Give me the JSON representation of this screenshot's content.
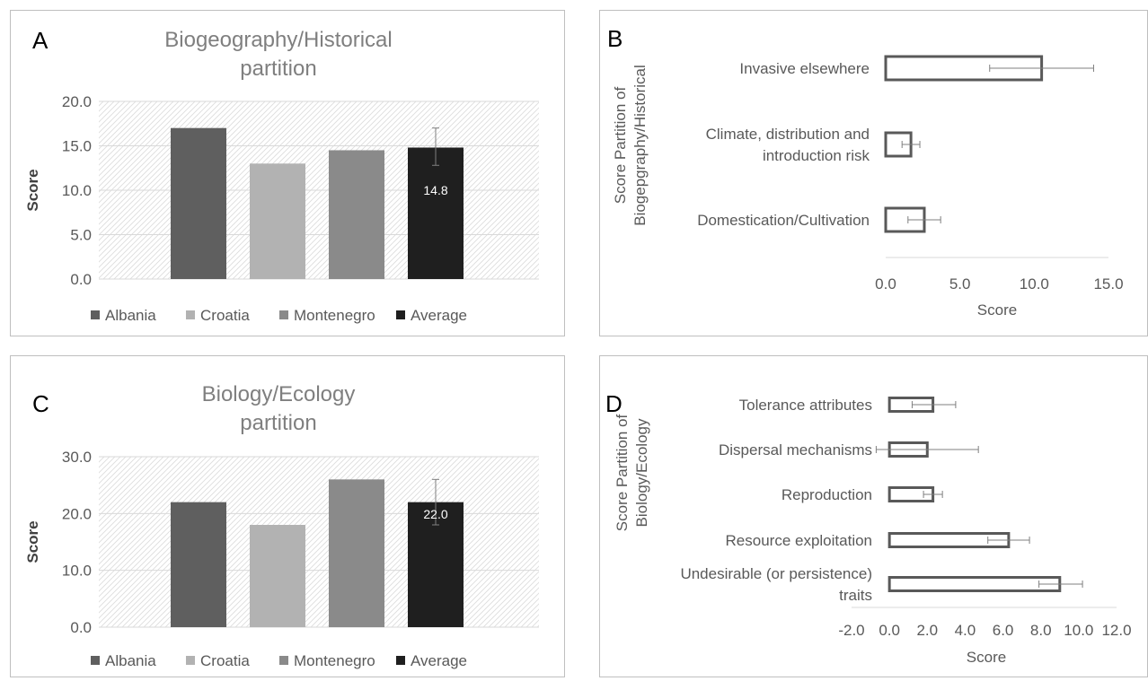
{
  "chart_data": [
    {
      "id": "A",
      "panel_letter": "A",
      "type": "bar",
      "title": [
        "Biogeography/Historical",
        "partition"
      ],
      "ylabel": "Score",
      "ylim": [
        0,
        20
      ],
      "yticks": [
        "0.0",
        "5.0",
        "10.0",
        "15.0",
        "20.0"
      ],
      "categories": [
        "Albania",
        "Croatia",
        "Montenegro",
        "Average"
      ],
      "values": [
        17,
        13,
        14.5,
        14.8
      ],
      "colors": [
        "#5f5f5f",
        "#b2b2b2",
        "#8a8a8a",
        "#1f1f1f"
      ],
      "error": {
        "index": 3,
        "low": 12.8,
        "high": 17
      },
      "data_label": {
        "index": 3,
        "text": "14.8"
      },
      "grid": true,
      "legend": "bottom"
    },
    {
      "id": "B",
      "panel_letter": "B",
      "type": "bar",
      "orientation": "horizontal",
      "ylabel": [
        "Score Partition of",
        "Biogepgraphy/Historical"
      ],
      "xlabel": "Score",
      "xlim": [
        0,
        15
      ],
      "xticks": [
        "0.0",
        "5.0",
        "10.0",
        "15.0"
      ],
      "categories": [
        [
          "Invasive elsewhere"
        ],
        [
          "Climate, distribution and",
          "introduction risk"
        ],
        [
          "Domestication/Cultivation"
        ]
      ],
      "values": [
        10.5,
        1.7,
        2.6
      ],
      "errors": [
        [
          7,
          14
        ],
        [
          1.1,
          2.3
        ],
        [
          1.5,
          3.7
        ]
      ],
      "grid": false
    },
    {
      "id": "C",
      "panel_letter": "C",
      "type": "bar",
      "title": [
        "Biology/Ecology",
        "partition"
      ],
      "ylabel": "Score",
      "ylim": [
        0,
        30
      ],
      "yticks": [
        "0.0",
        "10.0",
        "20.0",
        "30.0"
      ],
      "categories": [
        "Albania",
        "Croatia",
        "Montenegro",
        "Average"
      ],
      "values": [
        22,
        18,
        26,
        22
      ],
      "colors": [
        "#5f5f5f",
        "#b2b2b2",
        "#8a8a8a",
        "#1f1f1f"
      ],
      "error": {
        "index": 3,
        "low": 18,
        "high": 26
      },
      "data_label": {
        "index": 3,
        "text": "22.0"
      },
      "grid": true,
      "legend": "bottom"
    },
    {
      "id": "D",
      "panel_letter": "D",
      "type": "bar",
      "orientation": "horizontal",
      "ylabel": [
        "Score Partition of",
        "Biology/Ecology"
      ],
      "xlabel": "Score",
      "xlim": [
        -2,
        12
      ],
      "xticks": [
        "-2.0",
        "0.0",
        "2.0",
        "4.0",
        "6.0",
        "8.0",
        "10.0",
        "12.0"
      ],
      "categories": [
        [
          "Tolerance attributes"
        ],
        [
          "Dispersal mechanisms"
        ],
        [
          "Reproduction"
        ],
        [
          "Resource exploitation"
        ],
        [
          "Undesirable (or persistence)",
          "traits"
        ]
      ],
      "values": [
        2.3,
        2.0,
        2.3,
        6.3,
        9.0
      ],
      "errors": [
        [
          1.2,
          3.5
        ],
        [
          -0.7,
          4.7
        ],
        [
          1.8,
          2.8
        ],
        [
          5.2,
          7.4
        ],
        [
          7.9,
          10.2
        ]
      ],
      "grid": false
    }
  ]
}
